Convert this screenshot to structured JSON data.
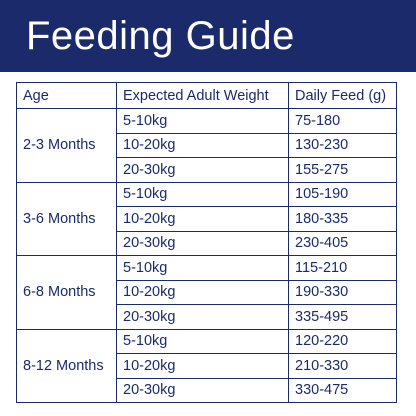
{
  "banner": {
    "title": "Feeding Guide"
  },
  "table": {
    "headers": [
      "Age",
      "Expected Adult Weight",
      "Daily Feed (g)"
    ],
    "groups": [
      {
        "age": "2-3 Months",
        "rows": [
          {
            "weight": "5-10kg",
            "feed": "75-180"
          },
          {
            "weight": "10-20kg",
            "feed": "130-230"
          },
          {
            "weight": "20-30kg",
            "feed": "155-275"
          }
        ]
      },
      {
        "age": "3-6 Months",
        "rows": [
          {
            "weight": "5-10kg",
            "feed": "105-190"
          },
          {
            "weight": "10-20kg",
            "feed": "180-335"
          },
          {
            "weight": "20-30kg",
            "feed": "230-405"
          }
        ]
      },
      {
        "age": "6-8 Months",
        "rows": [
          {
            "weight": "5-10kg",
            "feed": "115-210"
          },
          {
            "weight": "10-20kg",
            "feed": "190-330"
          },
          {
            "weight": "20-30kg",
            "feed": "335-495"
          }
        ]
      },
      {
        "age": "8-12 Months",
        "rows": [
          {
            "weight": "5-10kg",
            "feed": "120-220"
          },
          {
            "weight": "10-20kg",
            "feed": "210-330"
          },
          {
            "weight": "20-30kg",
            "feed": "330-475"
          }
        ]
      }
    ]
  },
  "colors": {
    "navy": "#1b2a6b",
    "background": "#ffffff"
  }
}
